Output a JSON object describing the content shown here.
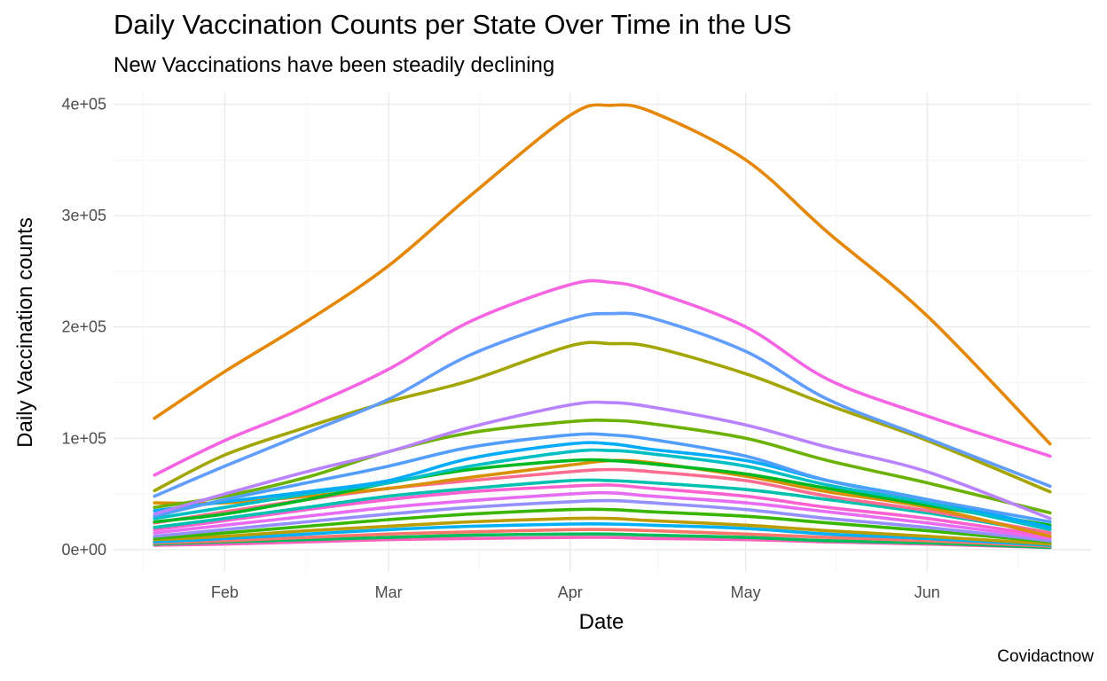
{
  "title": "Daily Vaccination Counts per State Over Time in the US",
  "subtitle": "New Vaccinations have been steadily declining",
  "caption": "Covidactnow",
  "chart_data": {
    "type": "line",
    "title": "Daily Vaccination Counts per State Over Time in the US",
    "subtitle": "New Vaccinations have been steadily declining",
    "xlabel": "Date",
    "ylabel": "Daily Vaccination counts",
    "ylim": [
      -20000,
      410000
    ],
    "xlim": [
      "2021-01-13",
      "2021-06-29"
    ],
    "grid": true,
    "legend": "none",
    "x_ticks": [
      {
        "date": "2021-02-01",
        "label": "Feb"
      },
      {
        "date": "2021-03-01",
        "label": "Mar"
      },
      {
        "date": "2021-04-01",
        "label": "Apr"
      },
      {
        "date": "2021-05-01",
        "label": "May"
      },
      {
        "date": "2021-06-01",
        "label": "Jun"
      }
    ],
    "y_ticks": [
      {
        "value": 0,
        "label": "0e+00"
      },
      {
        "value": 100000,
        "label": "1e+05"
      },
      {
        "value": 200000,
        "label": "2e+05"
      },
      {
        "value": 300000,
        "label": "3e+05"
      },
      {
        "value": 400000,
        "label": "4e+05"
      }
    ],
    "x": [
      "2021-01-20",
      "2021-02-01",
      "2021-02-15",
      "2021-03-01",
      "2021-03-15",
      "2021-04-01",
      "2021-04-08",
      "2021-04-15",
      "2021-05-01",
      "2021-05-15",
      "2021-06-01",
      "2021-06-22"
    ],
    "series": [
      {
        "color": "#E58700",
        "values": [
          118000,
          160000,
          205000,
          255000,
          318000,
          390000,
          399000,
          393000,
          350000,
          285000,
          210000,
          95000
        ]
      },
      {
        "color": "#F564E3",
        "values": [
          67000,
          98000,
          128000,
          162000,
          205000,
          238000,
          240000,
          232000,
          200000,
          153000,
          120000,
          84000
        ]
      },
      {
        "color": "#619CFF",
        "values": [
          48000,
          75000,
          105000,
          135000,
          175000,
          207000,
          212000,
          208000,
          178000,
          135000,
          100000,
          57000
        ]
      },
      {
        "color": "#A3A500",
        "values": [
          53000,
          85000,
          110000,
          133000,
          152000,
          183000,
          185000,
          182000,
          158000,
          130000,
          98000,
          52000
        ]
      },
      {
        "color": "#B983FF",
        "values": [
          32000,
          50000,
          70000,
          88000,
          110000,
          130000,
          132000,
          128000,
          112000,
          92000,
          70000,
          28000
        ]
      },
      {
        "color": "#6BB100",
        "values": [
          38000,
          48000,
          65000,
          88000,
          105000,
          115000,
          116000,
          113000,
          100000,
          80000,
          60000,
          33000
        ]
      },
      {
        "color": "#529EFF",
        "values": [
          30000,
          45000,
          60000,
          75000,
          92000,
          103000,
          103000,
          99000,
          84000,
          62000,
          45000,
          25000
        ]
      },
      {
        "color": "#00ABFD",
        "values": [
          35000,
          43000,
          52000,
          62000,
          82000,
          95000,
          95000,
          90000,
          80000,
          62000,
          45000,
          20000
        ]
      },
      {
        "color": "#00BFC4",
        "values": [
          28000,
          38000,
          50000,
          60000,
          75000,
          88000,
          89000,
          86000,
          75000,
          58000,
          42000,
          18000
        ]
      },
      {
        "color": "#00B81F",
        "values": [
          25000,
          32000,
          45000,
          60000,
          72000,
          80000,
          80000,
          77000,
          68000,
          55000,
          40000,
          22000
        ]
      },
      {
        "color": "#D89000",
        "values": [
          42000,
          42000,
          48000,
          55000,
          65000,
          76000,
          80000,
          78000,
          66000,
          52000,
          38000,
          12000
        ]
      },
      {
        "color": "#FF6C91",
        "values": [
          24000,
          34000,
          45000,
          55000,
          62000,
          70000,
          72000,
          70000,
          62000,
          48000,
          35000,
          15000
        ]
      },
      {
        "color": "#00C0AF",
        "values": [
          20000,
          28000,
          38000,
          48000,
          55000,
          62000,
          62000,
          60000,
          54000,
          45000,
          33000,
          15000
        ]
      },
      {
        "color": "#FD61D1",
        "values": [
          18000,
          26000,
          36000,
          45000,
          52000,
          57000,
          58000,
          55000,
          48000,
          38000,
          28000,
          12000
        ]
      },
      {
        "color": "#E76BF3",
        "values": [
          15000,
          22000,
          30000,
          38000,
          44000,
          50000,
          51000,
          48000,
          42000,
          34000,
          24000,
          10000
        ]
      },
      {
        "color": "#9590FF",
        "values": [
          12000,
          18000,
          25000,
          32000,
          38000,
          43000,
          44000,
          42000,
          36000,
          28000,
          20000,
          8000
        ]
      },
      {
        "color": "#39B600",
        "values": [
          10000,
          15000,
          21000,
          27000,
          32000,
          36000,
          36000,
          34000,
          30000,
          24000,
          17000,
          7000
        ]
      },
      {
        "color": "#BB9D00",
        "values": [
          9000,
          12000,
          17000,
          21000,
          25000,
          28000,
          28000,
          26000,
          22000,
          17000,
          12000,
          5000
        ]
      },
      {
        "color": "#00B0F6",
        "values": [
          7000,
          10000,
          14000,
          18000,
          21000,
          23000,
          23000,
          22000,
          19000,
          14000,
          10000,
          4000
        ]
      },
      {
        "color": "#F8766D",
        "values": [
          6000,
          8000,
          11000,
          14000,
          16000,
          18000,
          18000,
          17000,
          14000,
          11000,
          8000,
          3000
        ]
      },
      {
        "color": "#00BD5C",
        "values": [
          5000,
          7000,
          9000,
          11000,
          13000,
          14000,
          14000,
          13000,
          11000,
          8000,
          6000,
          2000
        ]
      },
      {
        "color": "#FF62BC",
        "values": [
          4000,
          5000,
          7000,
          9000,
          10000,
          11000,
          11000,
          10000,
          9000,
          7000,
          5000,
          2000
        ]
      }
    ]
  }
}
